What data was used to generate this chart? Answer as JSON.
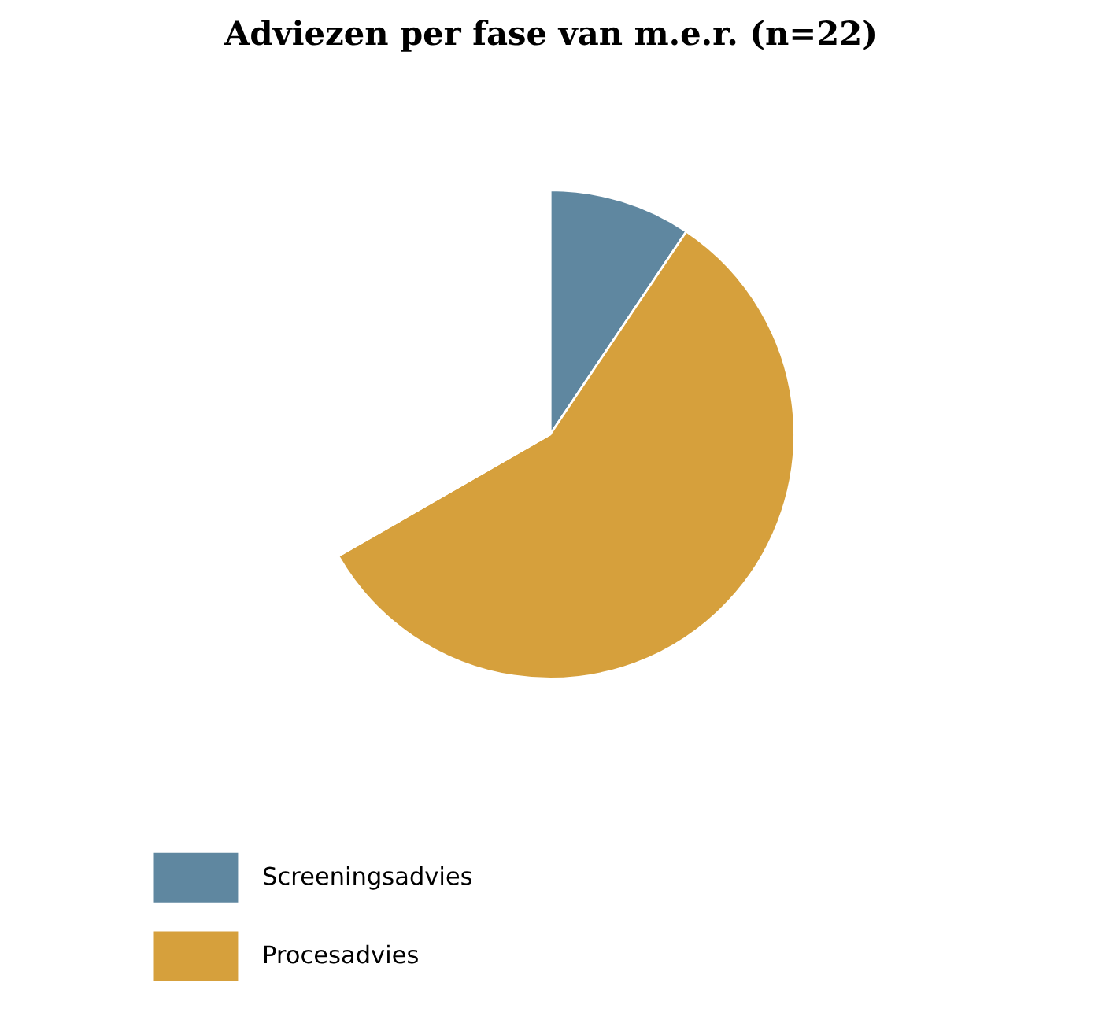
{
  "chart_data": {
    "type": "pie",
    "title": "Adviezen per fase van m.e.r. (n=22)",
    "categories": [
      "Screeningsadvies",
      "Procesadvies",
      null
    ],
    "values": [
      9.4,
      57.3,
      33.3
    ],
    "colors": [
      "#5f87a0",
      "#d6a03c",
      "#ffffff"
    ],
    "legend": "bottom left"
  }
}
